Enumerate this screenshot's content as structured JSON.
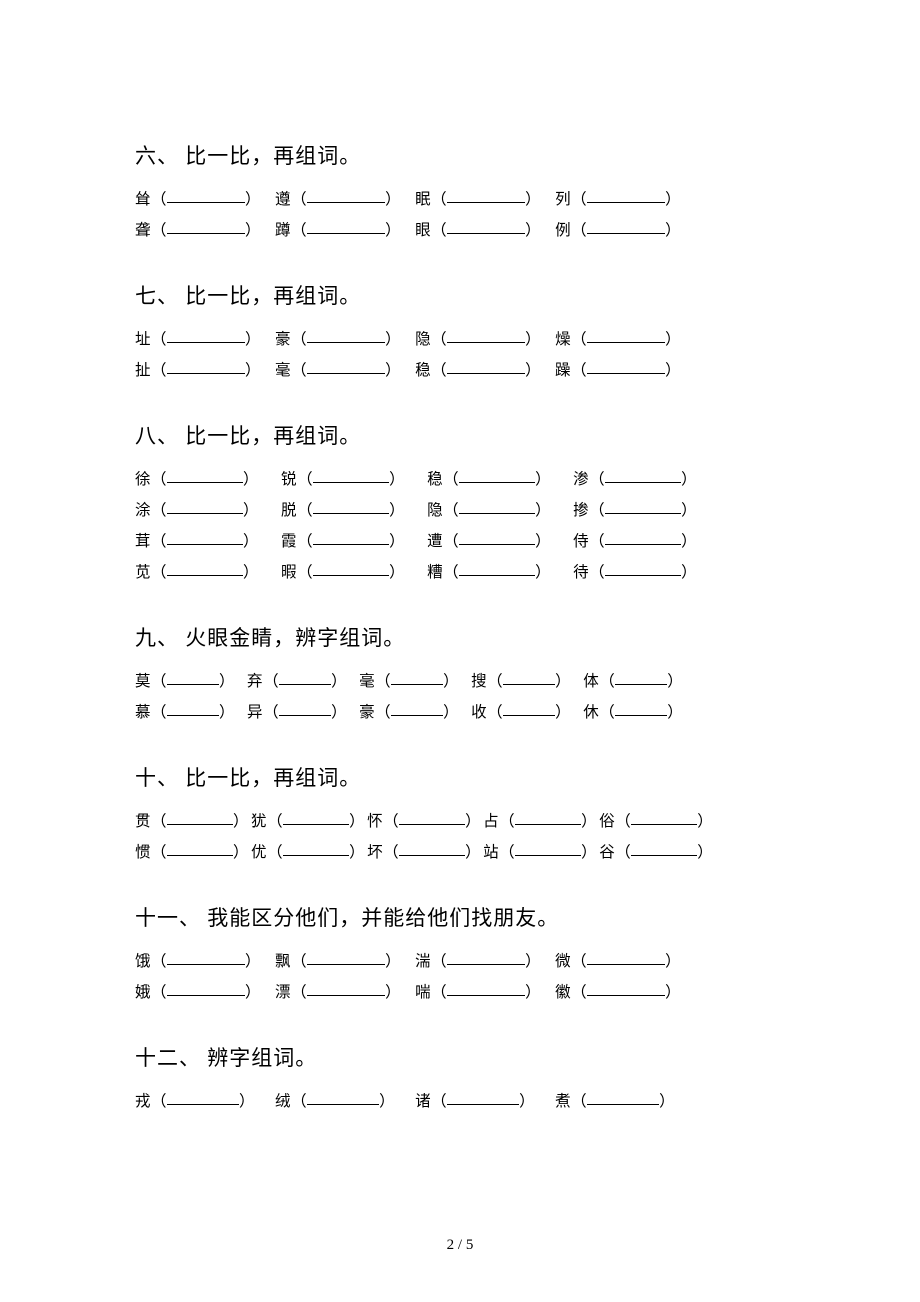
{
  "page_number": "2 / 5",
  "sections": [
    {
      "title": "六、 比一比，再组词。",
      "blank_width": 78,
      "spacing": 14,
      "rows": [
        [
          "耸",
          "遵",
          "眠",
          "列"
        ],
        [
          "聋",
          "蹲",
          "眼",
          "例"
        ]
      ]
    },
    {
      "title": "七、 比一比，再组词。",
      "blank_width": 78,
      "spacing": 14,
      "rows": [
        [
          "址",
          "豪",
          "隐",
          "燥"
        ],
        [
          "扯",
          "毫",
          "稳",
          "躁"
        ]
      ]
    },
    {
      "title": "八、 比一比，再组词。",
      "blank_width": 76,
      "spacing": 22,
      "rows": [
        [
          "徐",
          "锐",
          "稳",
          "渗"
        ],
        [
          "涂",
          "脱",
          "隐",
          "掺"
        ],
        [
          "茸",
          "霞",
          "遭",
          "侍"
        ],
        [
          "苋",
          "暇",
          "糟",
          "待"
        ]
      ]
    },
    {
      "title": "九、 火眼金睛，辨字组词。",
      "blank_width": 52,
      "spacing": 12,
      "rows": [
        [
          "莫",
          "弃",
          "毫",
          "搜",
          "体"
        ],
        [
          "慕",
          "异",
          "豪",
          "收",
          "休"
        ]
      ]
    },
    {
      "title": "十、 比一比，再组词。",
      "blank_width": 66,
      "spacing": 2,
      "rows": [
        [
          "贯",
          "犹",
          "怀",
          "占",
          "俗"
        ],
        [
          "惯",
          "优",
          "坏",
          "站",
          "谷"
        ]
      ]
    },
    {
      "title": "十一、 我能区分他们，并能给他们找朋友。",
      "blank_width": 78,
      "spacing": 14,
      "rows": [
        [
          "饿",
          "飘",
          "湍",
          "微"
        ],
        [
          "娥",
          "漂",
          "喘",
          "徽"
        ]
      ]
    },
    {
      "title": "十二、 辨字组词。",
      "blank_width": 72,
      "spacing": 20,
      "rows": [
        [
          "戎",
          "绒",
          "诸",
          "煮"
        ]
      ]
    }
  ]
}
